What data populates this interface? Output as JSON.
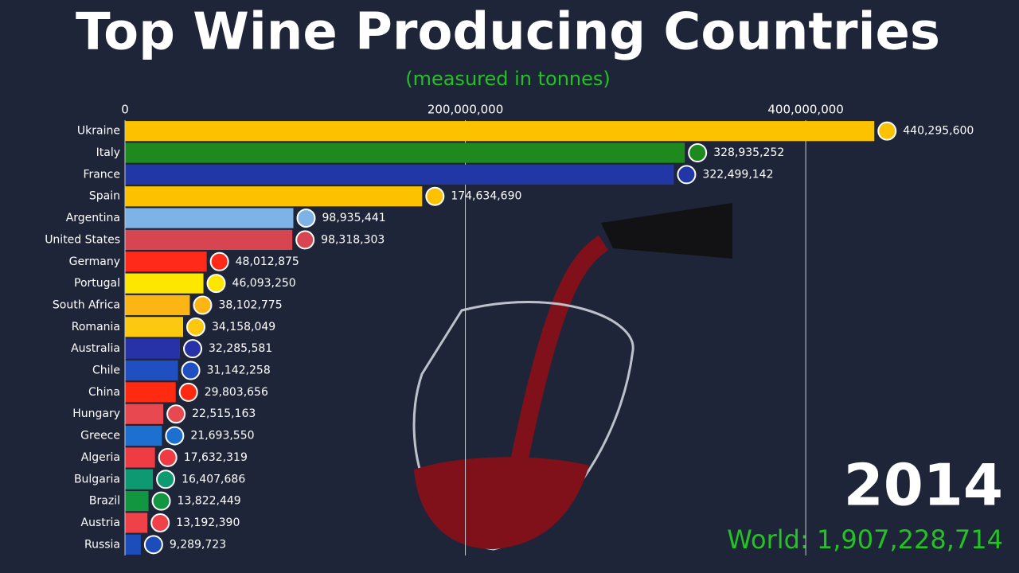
{
  "chart_data": {
    "type": "bar",
    "orientation": "horizontal",
    "title": "Top Wine Producing Countries",
    "subtitle": "(measured in tonnes)",
    "year": "2014",
    "total_label": "World: 1,907,228,714",
    "categories": [
      "Ukraine",
      "Italy",
      "France",
      "Spain",
      "Argentina",
      "United States",
      "Germany",
      "Portugal",
      "South Africa",
      "Romania",
      "Australia",
      "Chile",
      "China",
      "Hungary",
      "Greece",
      "Algeria",
      "Bulgaria",
      "Brazil",
      "Austria",
      "Russia"
    ],
    "values": [
      440295600,
      328935252,
      322499142,
      174634690,
      98935441,
      98318303,
      48012875,
      46093250,
      38102775,
      34158049,
      32285581,
      31142258,
      29803656,
      22515163,
      21693550,
      17632319,
      16407686,
      13822449,
      13192390,
      9289723
    ],
    "value_labels": [
      "440,295,600",
      "328,935,252",
      "322,499,142",
      "174,634,690",
      "98,935,441",
      "98,318,303",
      "48,012,875",
      "46,093,250",
      "38,102,775",
      "34,158,049",
      "32,285,581",
      "31,142,258",
      "29,803,656",
      "22,515,163",
      "21,693,550",
      "17,632,319",
      "16,407,686",
      "13,822,449",
      "13,192,390",
      "9,289,723"
    ],
    "colors": [
      "#fcc200",
      "#1e8a1e",
      "#2137a6",
      "#fcc200",
      "#7db3e6",
      "#d64550",
      "#ff2a1a",
      "#fde600",
      "#fdb515",
      "#fcc910",
      "#2732a8",
      "#1f4fc0",
      "#ff2a10",
      "#e8484f",
      "#1d6fd0",
      "#ee3b44",
      "#0e9a70",
      "#129640",
      "#ef4148",
      "#1d4dbb"
    ],
    "xlim": [
      0,
      450000000
    ],
    "xticks": [
      0,
      {
        "value": 200000000,
        "label": "200,000,000"
      },
      {
        "value": 400000000,
        "label": "400,000,000"
      }
    ],
    "grid": true
  }
}
